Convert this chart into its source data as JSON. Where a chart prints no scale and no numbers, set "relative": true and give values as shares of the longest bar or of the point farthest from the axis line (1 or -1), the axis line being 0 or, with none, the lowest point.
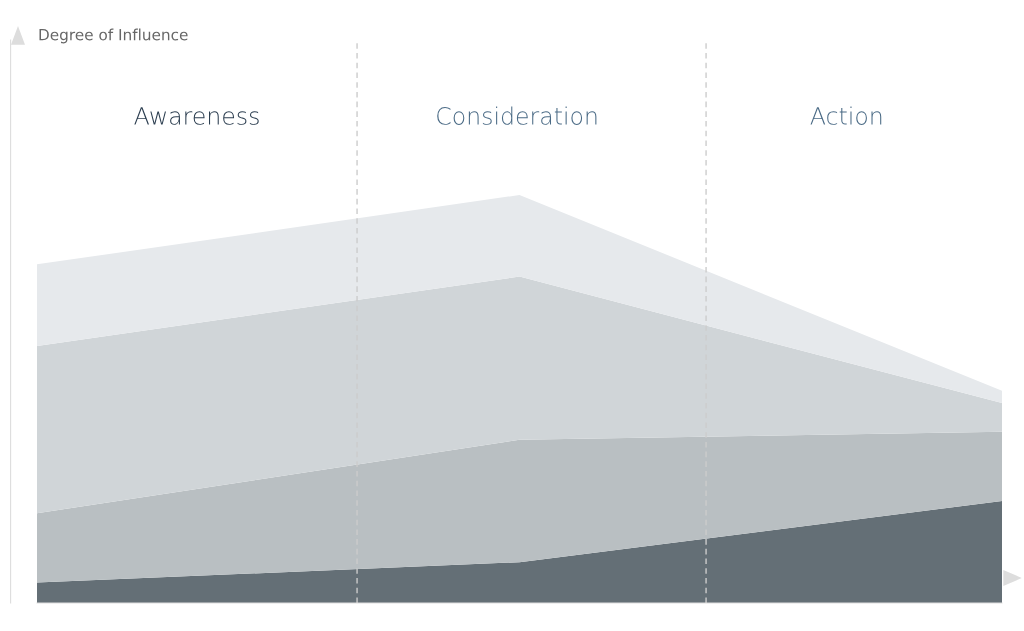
{
  "chart_data": {
    "type": "area",
    "relative": true,
    "stacked": true,
    "categories": [
      null,
      null,
      null
    ],
    "series": [
      {
        "color": "#646f76",
        "values": [
          0.05,
          0.1,
          0.25
        ]
      },
      {
        "color": "#b9bfc2",
        "values": [
          0.17,
          0.3,
          0.17
        ]
      },
      {
        "color": "#d0d5d8",
        "values": [
          0.41,
          0.4,
          0.07
        ]
      },
      {
        "color": "#e6e9ec",
        "values": [
          0.2,
          0.2,
          0.03
        ]
      }
    ],
    "annotations": [
      "Degree of Influence",
      "Awareness",
      "Consideration",
      "Action"
    ]
  }
}
